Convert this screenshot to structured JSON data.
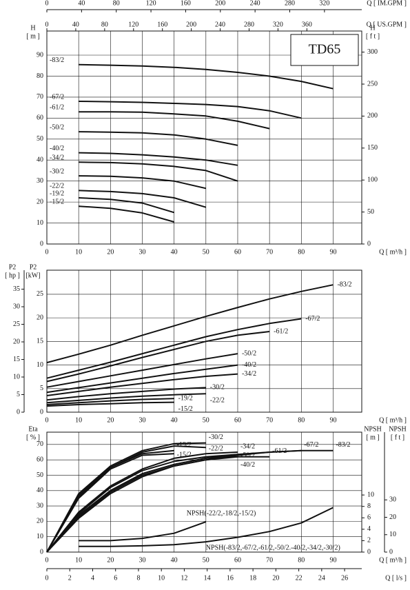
{
  "chart_data": [
    {
      "type": "line",
      "title": "TD65",
      "color": "#111111",
      "grid": true,
      "x_label": "Q [ m³/h ]",
      "xlim": [
        0,
        99
      ],
      "xticks": [
        0,
        10,
        20,
        30,
        40,
        50,
        60,
        70,
        80,
        90
      ],
      "y_label": "H",
      "y_unit": "[ m ]",
      "ylim": [
        0,
        101.5
      ],
      "yticks": [
        0,
        10,
        20,
        30,
        40,
        50,
        60,
        70,
        80,
        90
      ],
      "y2_label": "H",
      "y2_unit": "[ f t ]",
      "y2lim": [
        0,
        333
      ],
      "y2ticks": [
        0,
        50,
        100,
        150,
        200,
        250,
        300
      ],
      "x2_label": "Q [ US.GPM ]",
      "x2lim": [
        0,
        436
      ],
      "x2ticks": [
        0,
        40,
        80,
        120,
        160,
        200,
        240,
        280,
        320,
        360
      ],
      "x3_label": "Q [ IM.GPM ]",
      "x3lim": [
        0,
        363
      ],
      "x3ticks": [
        0,
        40,
        80,
        120,
        160,
        200,
        240,
        280,
        320
      ],
      "series": [
        {
          "name": "-83/2",
          "x": [
            10,
            20,
            30,
            40,
            50,
            60,
            70,
            80,
            90
          ],
          "values": [
            85.5,
            85.2,
            84.8,
            84.2,
            83.2,
            81.8,
            80,
            77.5,
            74
          ]
        },
        {
          "name": "-67/2",
          "x": [
            10,
            20,
            30,
            40,
            50,
            60,
            70,
            80
          ],
          "values": [
            68,
            67.8,
            67.5,
            67,
            66.5,
            65.5,
            63.5,
            60
          ]
        },
        {
          "name": "-61/2",
          "x": [
            10,
            20,
            30,
            40,
            50,
            60,
            70
          ],
          "values": [
            63,
            63,
            62.8,
            62,
            61,
            58.5,
            55
          ]
        },
        {
          "name": "-50/2",
          "x": [
            10,
            20,
            30,
            40,
            50,
            60
          ],
          "values": [
            53.5,
            53.3,
            53,
            52,
            50,
            47
          ]
        },
        {
          "name": "-40/2",
          "x": [
            10,
            20,
            30,
            40,
            50,
            60
          ],
          "values": [
            43.5,
            43.2,
            42.5,
            41.5,
            40,
            37.5
          ]
        },
        {
          "name": "-34/2",
          "x": [
            10,
            20,
            30,
            40,
            50,
            60
          ],
          "values": [
            39,
            38.8,
            38.2,
            37,
            35,
            30
          ]
        },
        {
          "name": "-30/2",
          "x": [
            10,
            20,
            30,
            40,
            50
          ],
          "values": [
            32.5,
            32.3,
            31.5,
            30,
            26.5
          ]
        },
        {
          "name": "-22/2",
          "x": [
            10,
            20,
            30,
            40,
            50
          ],
          "values": [
            25.5,
            25,
            24,
            22,
            17.5
          ]
        },
        {
          "name": "-19/2",
          "x": [
            10,
            20,
            30,
            40
          ],
          "values": [
            22,
            21.3,
            19.5,
            15
          ]
        },
        {
          "name": "-15/2",
          "x": [
            10,
            20,
            30,
            40
          ],
          "values": [
            18,
            17,
            14.8,
            10.5
          ]
        }
      ]
    },
    {
      "type": "line",
      "color": "#111111",
      "grid": true,
      "x_label": "Q [ m³/h ]",
      "xlim": [
        0,
        99
      ],
      "xticks": [
        0,
        10,
        20,
        30,
        40,
        50,
        60,
        70,
        80,
        90
      ],
      "y_label": "P2",
      "y_unit": "[kW]",
      "ylim": [
        0,
        30.1
      ],
      "yticks": [
        0,
        5,
        10,
        15,
        20,
        25
      ],
      "y2_label": "P2",
      "y2_unit": "[ hp ]",
      "y2lim": [
        0,
        40.4
      ],
      "y2ticks": [
        0,
        5,
        10,
        15,
        20,
        25,
        30,
        35
      ],
      "y2_side": "left",
      "series": [
        {
          "name": "-83/2",
          "x": [
            0,
            10,
            20,
            30,
            40,
            50,
            60,
            70,
            80,
            90
          ],
          "values": [
            10.5,
            12.3,
            14.2,
            16.3,
            18.3,
            20.3,
            22.2,
            24,
            25.6,
            27
          ]
        },
        {
          "name": "-67/2",
          "x": [
            0,
            10,
            20,
            30,
            40,
            50,
            60,
            70,
            80
          ],
          "values": [
            7.2,
            8.9,
            10.6,
            12.4,
            14.2,
            16,
            17.5,
            18.8,
            19.8
          ]
        },
        {
          "name": "-61/2",
          "x": [
            0,
            10,
            20,
            30,
            40,
            50,
            60,
            70
          ],
          "values": [
            6.5,
            8.1,
            9.8,
            11.6,
            13.3,
            15,
            16.3,
            17.1
          ]
        },
        {
          "name": "-50/2",
          "x": [
            0,
            10,
            20,
            30,
            40,
            50,
            60
          ],
          "values": [
            5.3,
            6.5,
            7.7,
            8.9,
            10.1,
            11.3,
            12.4
          ]
        },
        {
          "name": "-40/2",
          "x": [
            0,
            10,
            20,
            30,
            40,
            50,
            60
          ],
          "values": [
            4.2,
            5.2,
            6.2,
            7.2,
            8.2,
            9.1,
            10
          ]
        },
        {
          "name": "-34/2",
          "x": [
            0,
            10,
            20,
            30,
            40,
            50,
            60
          ],
          "values": [
            3.5,
            4.4,
            5.3,
            6.1,
            6.9,
            7.6,
            8.1
          ]
        },
        {
          "name": "-30/2",
          "x": [
            0,
            10,
            20,
            30,
            40,
            50
          ],
          "values": [
            2.6,
            3.3,
            3.9,
            4.4,
            4.9,
            5.2
          ]
        },
        {
          "name": "-22/2",
          "x": [
            0,
            10,
            20,
            30,
            40,
            50
          ],
          "values": [
            2,
            2.5,
            3,
            3.4,
            3.7,
            3.9
          ]
        },
        {
          "name": "-19/2",
          "x": [
            0,
            10,
            20,
            30,
            40
          ],
          "values": [
            1.6,
            2,
            2.4,
            2.7,
            2.9
          ]
        },
        {
          "name": "-15/2",
          "x": [
            0,
            10,
            20,
            30,
            40
          ],
          "values": [
            1.3,
            1.6,
            1.8,
            2,
            2.1
          ]
        }
      ]
    },
    {
      "type": "line",
      "color": "#111111",
      "grid": true,
      "x_label": "Q [ m³/h ]",
      "xlim": [
        0,
        99
      ],
      "xticks": [
        0,
        10,
        20,
        30,
        40,
        50,
        60,
        70,
        80,
        90
      ],
      "y_label": "Eta",
      "y_unit": "[ % ]",
      "ylim": [
        0,
        78
      ],
      "yticks": [
        0,
        10,
        20,
        30,
        40,
        50,
        60,
        70
      ],
      "y2_label": "NPSH",
      "y2_unit": "[ m ]",
      "y2lim": [
        0,
        21
      ],
      "y2ticks": [
        0,
        2,
        4,
        6,
        8,
        10
      ],
      "y3_label": "NPSH",
      "y3_unit": "[ f t ]",
      "y3lim": [
        0,
        68.9
      ],
      "y3ticks": [
        0,
        10,
        20,
        30
      ],
      "x2_label": "Q [ l/s ]",
      "x2lim": [
        0,
        27.5
      ],
      "x2ticks": [
        0,
        2,
        4,
        6,
        8,
        10,
        12,
        14,
        16,
        18,
        20,
        22,
        24,
        26
      ],
      "series": [
        {
          "name": "-30/2",
          "x": [
            0,
            10,
            20,
            30,
            40,
            50
          ],
          "values": [
            0,
            38,
            56,
            66,
            70.5,
            71
          ]
        },
        {
          "name": "-34/2",
          "x": [
            0,
            10,
            20,
            30,
            40,
            50,
            60
          ],
          "values": [
            0,
            26,
            43,
            54,
            61,
            64,
            65
          ]
        },
        {
          "name": "-22/2",
          "x": [
            0,
            10,
            20,
            30,
            40,
            50
          ],
          "values": [
            0,
            37,
            55,
            65,
            69,
            68
          ]
        },
        {
          "name": "-50/2",
          "x": [
            0,
            10,
            20,
            30,
            40,
            50,
            60
          ],
          "values": [
            0,
            25,
            42,
            53,
            59,
            62,
            63.5
          ]
        },
        {
          "name": "-19/2",
          "x": [
            0,
            10,
            20,
            30,
            40
          ],
          "values": [
            0,
            36,
            55,
            64,
            66
          ]
        },
        {
          "name": "-15/2",
          "x": [
            0,
            10,
            20,
            30,
            40
          ],
          "values": [
            0,
            35,
            54,
            63,
            64
          ]
        },
        {
          "name": "-40/2",
          "x": [
            0,
            10,
            20,
            30,
            40,
            50,
            60
          ],
          "values": [
            0,
            24,
            40,
            51,
            57,
            61,
            62
          ]
        },
        {
          "name": "-67/2",
          "x": [
            0,
            10,
            20,
            30,
            40,
            50,
            60,
            70,
            80
          ],
          "values": [
            0,
            24,
            40,
            51,
            57,
            61,
            63.5,
            65,
            66
          ]
        },
        {
          "name": "-61/2",
          "x": [
            0,
            10,
            20,
            30,
            40,
            50,
            60,
            70
          ],
          "values": [
            0,
            23,
            39,
            50,
            56,
            60,
            62,
            62
          ]
        },
        {
          "name": "-83/2",
          "x": [
            0,
            10,
            20,
            30,
            40,
            50,
            60,
            70,
            80,
            90
          ],
          "values": [
            0,
            22,
            38,
            49,
            56,
            60,
            63,
            65,
            66,
            66
          ]
        },
        {
          "name": "NPSH(-22/2,-18/2,-15/2)",
          "axis": "y2",
          "x": [
            10,
            20,
            30,
            40,
            50
          ],
          "values": [
            2,
            2,
            2.4,
            3.3,
            5.3
          ]
        },
        {
          "name": "NPSH(-83/2,-67/2,-61/2,-50/2.-40/2,-34/2,-30/2)",
          "axis": "y2",
          "x": [
            10,
            20,
            30,
            40,
            50,
            60,
            70,
            80,
            90
          ],
          "values": [
            1,
            1,
            1.1,
            1.3,
            1.8,
            2.6,
            3.6,
            5.1,
            7.8
          ]
        }
      ]
    }
  ]
}
